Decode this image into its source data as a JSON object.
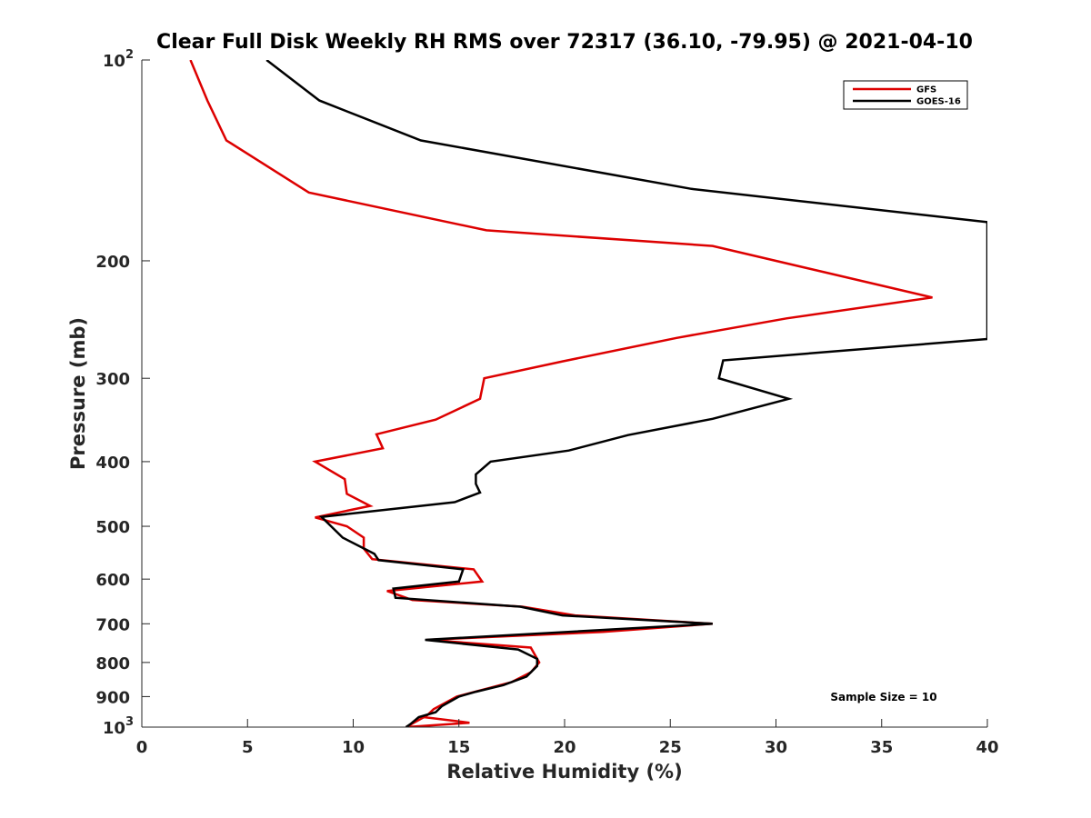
{
  "chart_data": {
    "type": "line",
    "title": "Clear Full Disk Weekly RH RMS over 72317 (36.10, -79.95) @ 2021-04-10",
    "xlabel": "Relative Humidity (%)",
    "ylabel": "Pressure (mb)",
    "xlim": [
      0,
      40
    ],
    "ylim": [
      100,
      1000
    ],
    "y_scale": "log",
    "y_reversed": true,
    "x_ticks": [
      0,
      5,
      10,
      15,
      20,
      25,
      30,
      35,
      40
    ],
    "x_tick_labels": [
      "0",
      "5",
      "10",
      "15",
      "20",
      "25",
      "30",
      "35",
      "40"
    ],
    "y_ticks": [
      {
        "value": 100,
        "base": "10",
        "exp": "2"
      },
      {
        "value": 200,
        "label": "200"
      },
      {
        "value": 300,
        "label": "300"
      },
      {
        "value": 400,
        "label": "400"
      },
      {
        "value": 500,
        "label": "500"
      },
      {
        "value": 600,
        "label": "600"
      },
      {
        "value": 700,
        "label": "700"
      },
      {
        "value": 800,
        "label": "800"
      },
      {
        "value": 900,
        "label": "900"
      },
      {
        "value": 1000,
        "base": "10",
        "exp": "3"
      }
    ],
    "grid": false,
    "legend_position": "top-right",
    "annotation": "Sample Size = 10",
    "series": [
      {
        "name": "GFS",
        "color": "#dd0000",
        "points": [
          [
            2.3,
            100
          ],
          [
            3.1,
            115
          ],
          [
            4.0,
            132
          ],
          [
            7.9,
            158
          ],
          [
            16.3,
            180
          ],
          [
            27.0,
            190
          ],
          [
            30.0,
            200
          ],
          [
            37.4,
            227
          ],
          [
            30.5,
            244
          ],
          [
            25.3,
            261
          ],
          [
            19.9,
            283
          ],
          [
            16.2,
            300
          ],
          [
            16.0,
            322
          ],
          [
            13.9,
            346
          ],
          [
            11.1,
            364
          ],
          [
            11.4,
            382
          ],
          [
            8.2,
            400
          ],
          [
            9.6,
            425
          ],
          [
            9.7,
            447
          ],
          [
            10.8,
            466
          ],
          [
            8.2,
            485
          ],
          [
            9.7,
            500
          ],
          [
            10.5,
            520
          ],
          [
            10.5,
            540
          ],
          [
            10.9,
            560
          ],
          [
            15.7,
            580
          ],
          [
            16.1,
            605
          ],
          [
            11.6,
            625
          ],
          [
            12.8,
            645
          ],
          [
            18.0,
            660
          ],
          [
            20.5,
            680
          ],
          [
            27.0,
            700
          ],
          [
            21.8,
            720
          ],
          [
            13.5,
            740
          ],
          [
            18.4,
            760
          ],
          [
            18.8,
            800
          ],
          [
            18.4,
            828
          ],
          [
            17.5,
            856
          ],
          [
            14.9,
            900
          ],
          [
            13.8,
            940
          ],
          [
            13.5,
            960
          ],
          [
            12.5,
            1000
          ],
          [
            15.5,
            985
          ],
          [
            13.2,
            965
          ]
        ]
      },
      {
        "name": "GOES-16",
        "color": "#000000",
        "points": [
          [
            5.9,
            100
          ],
          [
            8.4,
            115
          ],
          [
            13.2,
            132
          ],
          [
            26.0,
            156
          ],
          [
            40.0,
            175
          ],
          [
            40.0,
            262
          ],
          [
            27.5,
            282
          ],
          [
            27.3,
            300
          ],
          [
            30.6,
            322
          ],
          [
            27.0,
            345
          ],
          [
            23.0,
            365
          ],
          [
            20.2,
            385
          ],
          [
            16.5,
            400
          ],
          [
            15.8,
            418
          ],
          [
            15.8,
            432
          ],
          [
            16.0,
            445
          ],
          [
            14.8,
            460
          ],
          [
            8.5,
            484
          ],
          [
            9.5,
            520
          ],
          [
            11.0,
            550
          ],
          [
            11.2,
            562
          ],
          [
            15.2,
            580
          ],
          [
            15.0,
            605
          ],
          [
            11.9,
            620
          ],
          [
            12.0,
            640
          ],
          [
            17.9,
            660
          ],
          [
            19.9,
            680
          ],
          [
            27.0,
            700
          ],
          [
            13.4,
            740
          ],
          [
            17.8,
            765
          ],
          [
            18.7,
            790
          ],
          [
            18.7,
            810
          ],
          [
            18.2,
            840
          ],
          [
            17.1,
            865
          ],
          [
            15.8,
            885
          ],
          [
            15.0,
            900
          ],
          [
            14.2,
            930
          ],
          [
            13.9,
            950
          ],
          [
            13.1,
            966
          ],
          [
            12.7,
            990
          ],
          [
            12.5,
            1000
          ]
        ]
      }
    ]
  }
}
